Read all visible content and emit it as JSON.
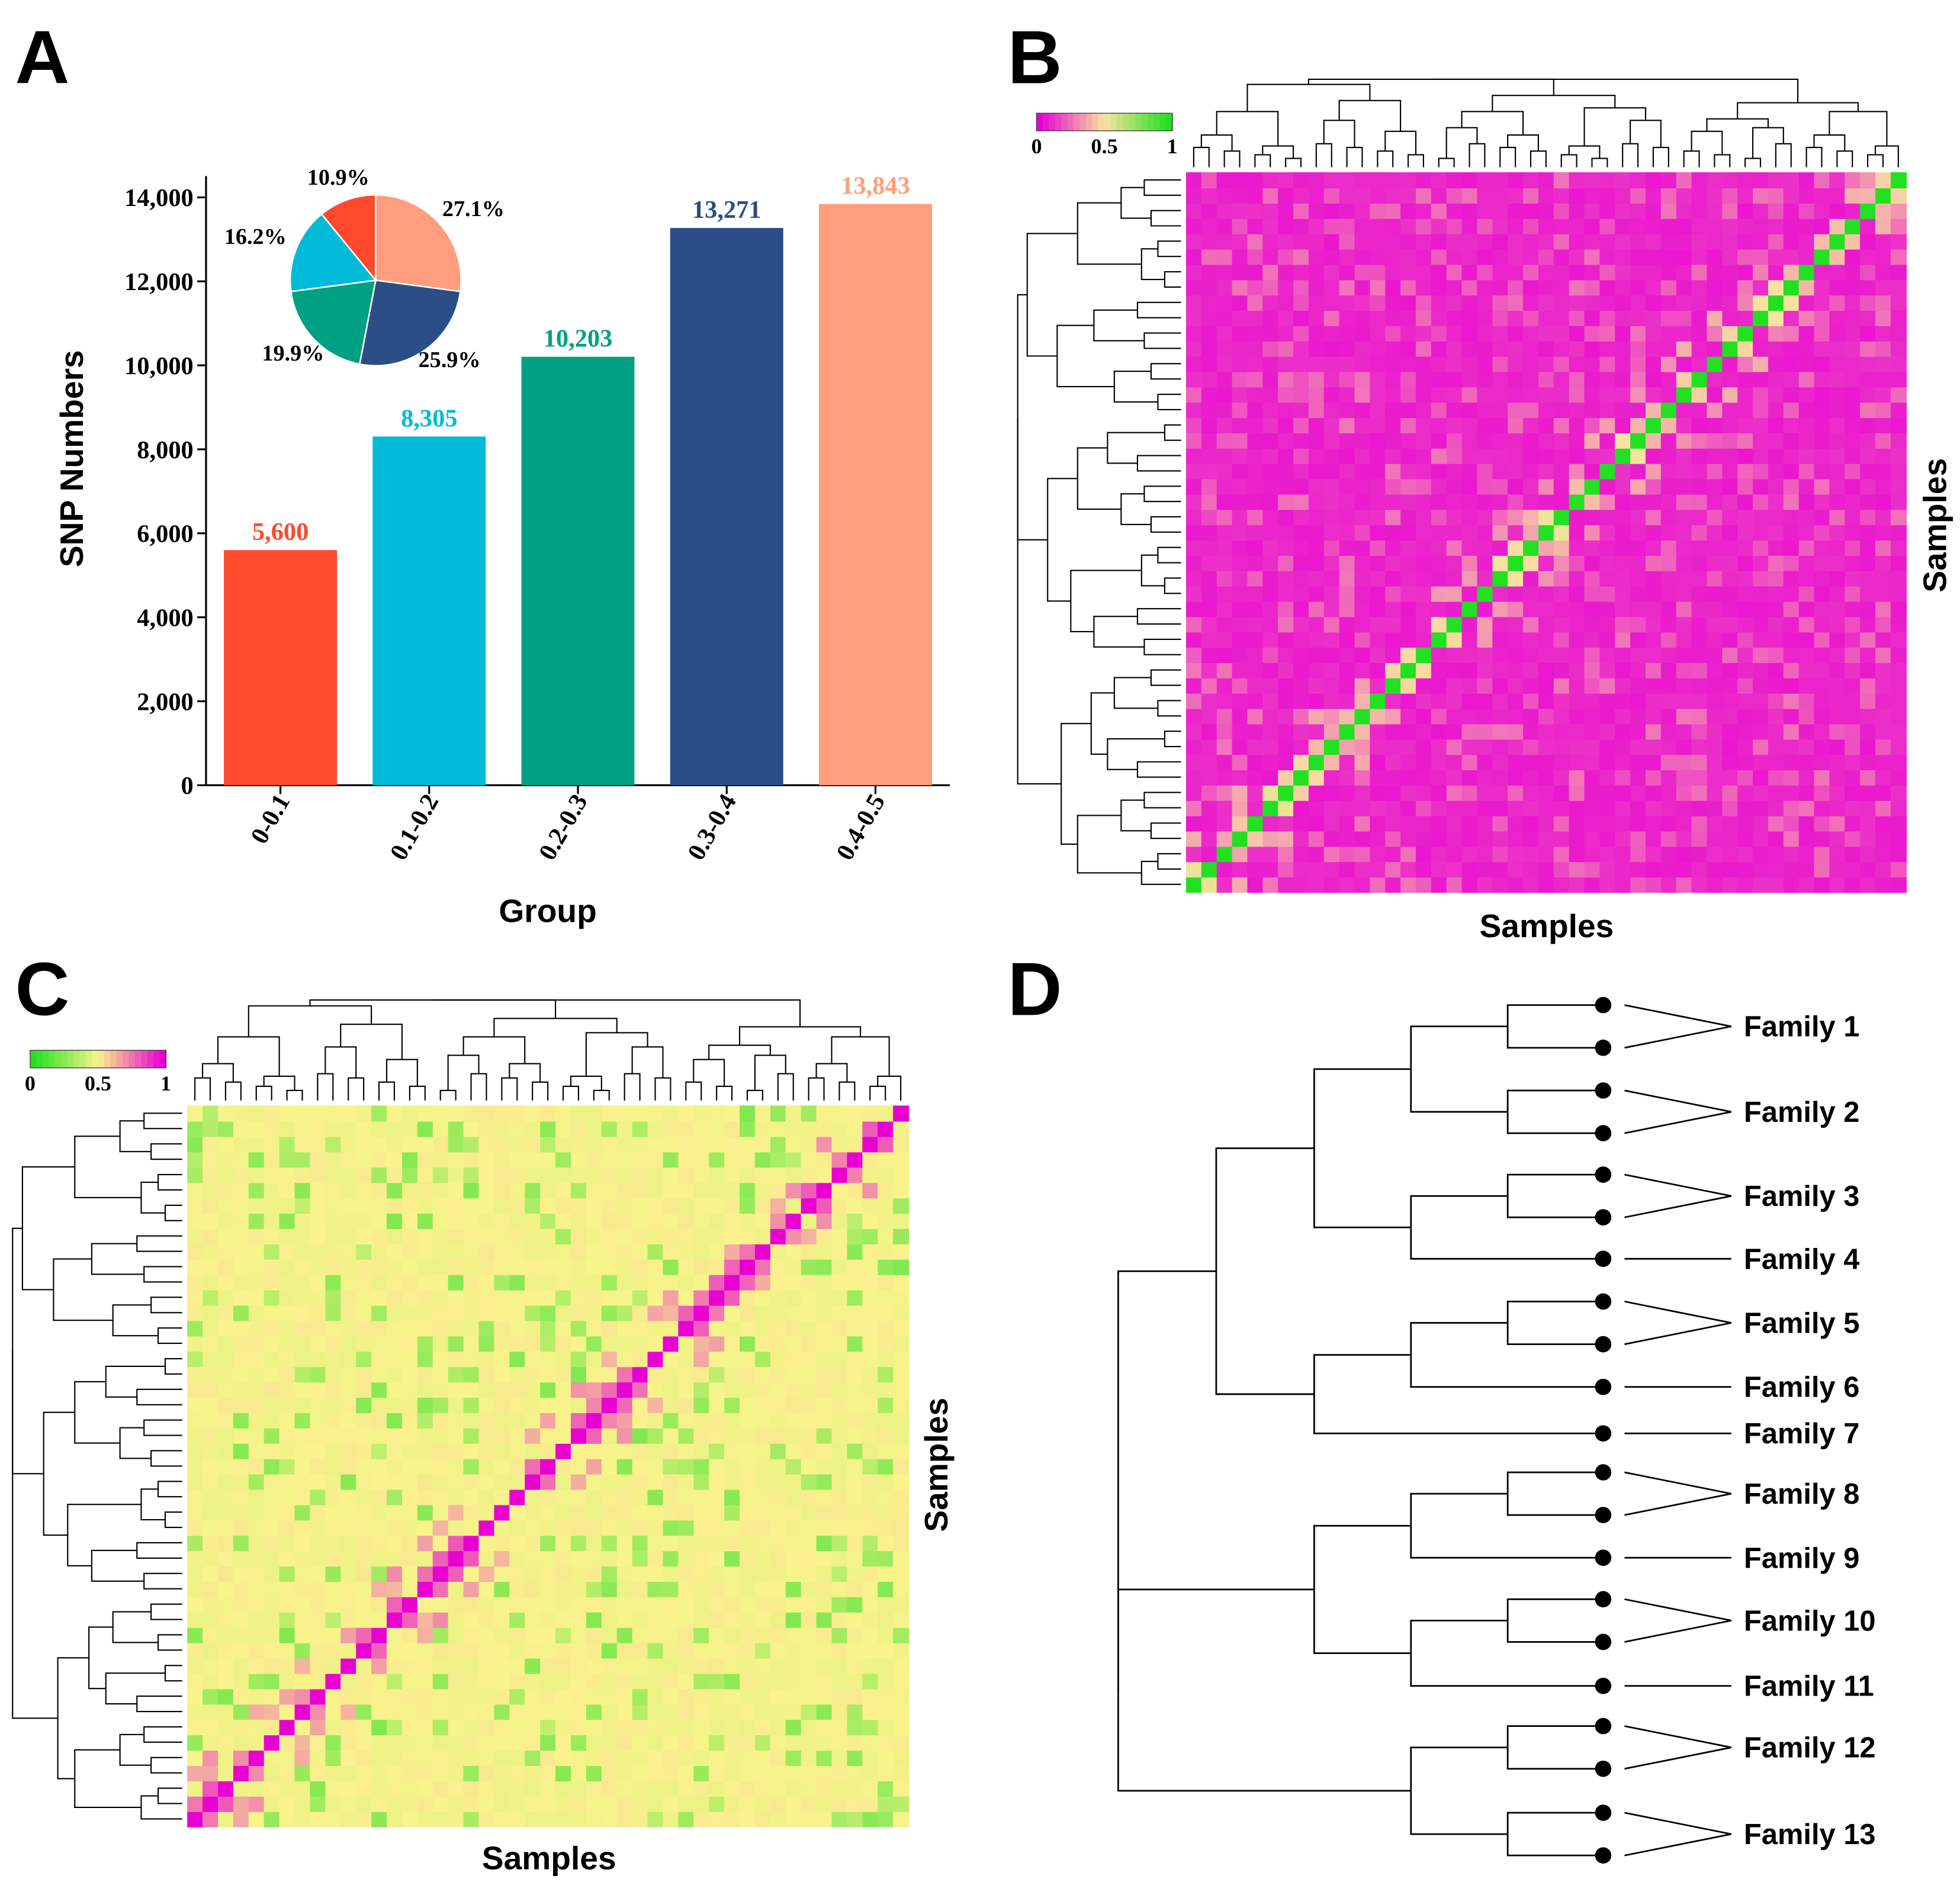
{
  "panels": {
    "A": "A",
    "B": "B",
    "C": "C",
    "D": "D"
  },
  "chart_data": [
    {
      "panel": "A",
      "type": "bar",
      "title": "",
      "xlabel": "Group",
      "ylabel": "SNP Numbers",
      "categories": [
        "0-0.1",
        "0.1-0.2",
        "0.2-0.3",
        "0.3-0.4",
        "0.4-0.5"
      ],
      "values": [
        5600,
        8305,
        10203,
        13271,
        13843
      ],
      "value_labels": [
        "5,600",
        "8,305",
        "10,203",
        "13,271",
        "13,843"
      ],
      "colors": [
        "#FF4A2E",
        "#00BAD8",
        "#00A083",
        "#2A4E85",
        "#FF9E7C"
      ],
      "ylim": [
        0,
        14000
      ],
      "yticks": [
        0,
        2000,
        4000,
        6000,
        8000,
        10000,
        12000,
        14000
      ],
      "ytick_labels": [
        "0",
        "2,000",
        "4,000",
        "6,000",
        "8,000",
        "10,000",
        "12,000",
        "14,000"
      ],
      "grid": false
    },
    {
      "panel": "A-inset",
      "type": "pie",
      "legend": "none",
      "labels": [
        "0.4-0.5",
        "0.3-0.4",
        "0.2-0.3",
        "0.1-0.2",
        "0-0.1"
      ],
      "values": [
        27.1,
        25.9,
        19.9,
        16.2,
        10.9
      ],
      "value_labels": [
        "27.1%",
        "25.9%",
        "19.9%",
        "16.2%",
        "10.9%"
      ],
      "colors": [
        "#FF9E7C",
        "#2A4E85",
        "#00A083",
        "#00BAD8",
        "#FF4A2E"
      ]
    },
    {
      "panel": "B",
      "type": "heatmap",
      "xlabel": "Samples",
      "ylabel": "Samples",
      "n": 47,
      "diagonal": "bottom-left to top-right",
      "colorbar": {
        "ticks": [
          "0",
          "0.5",
          "1"
        ],
        "low": "#E800D3",
        "mid": "#F9E3A0",
        "high": "#22E022"
      },
      "background_value": 0.1,
      "seed": 7
    },
    {
      "panel": "C",
      "type": "heatmap",
      "xlabel": "Samples",
      "ylabel": "Samples",
      "n": 47,
      "diagonal": "bottom-left to top-right",
      "colorbar": {
        "ticks": [
          "0",
          "0.5",
          "1"
        ],
        "low": "#22E022",
        "mid": "#F9F38C",
        "high": "#E800D3"
      },
      "background_value": 0.5,
      "seed": 13
    },
    {
      "panel": "D",
      "type": "dendrogram",
      "families": [
        "Family 1",
        "Family 2",
        "Family 3",
        "Family 4",
        "Family 5",
        "Family 6",
        "Family 7",
        "Family 8",
        "Family 9",
        "Family 10",
        "Family 11",
        "Family 12",
        "Family 13"
      ],
      "family_sizes": [
        2,
        2,
        2,
        1,
        2,
        1,
        1,
        2,
        1,
        2,
        1,
        2,
        2
      ]
    }
  ]
}
